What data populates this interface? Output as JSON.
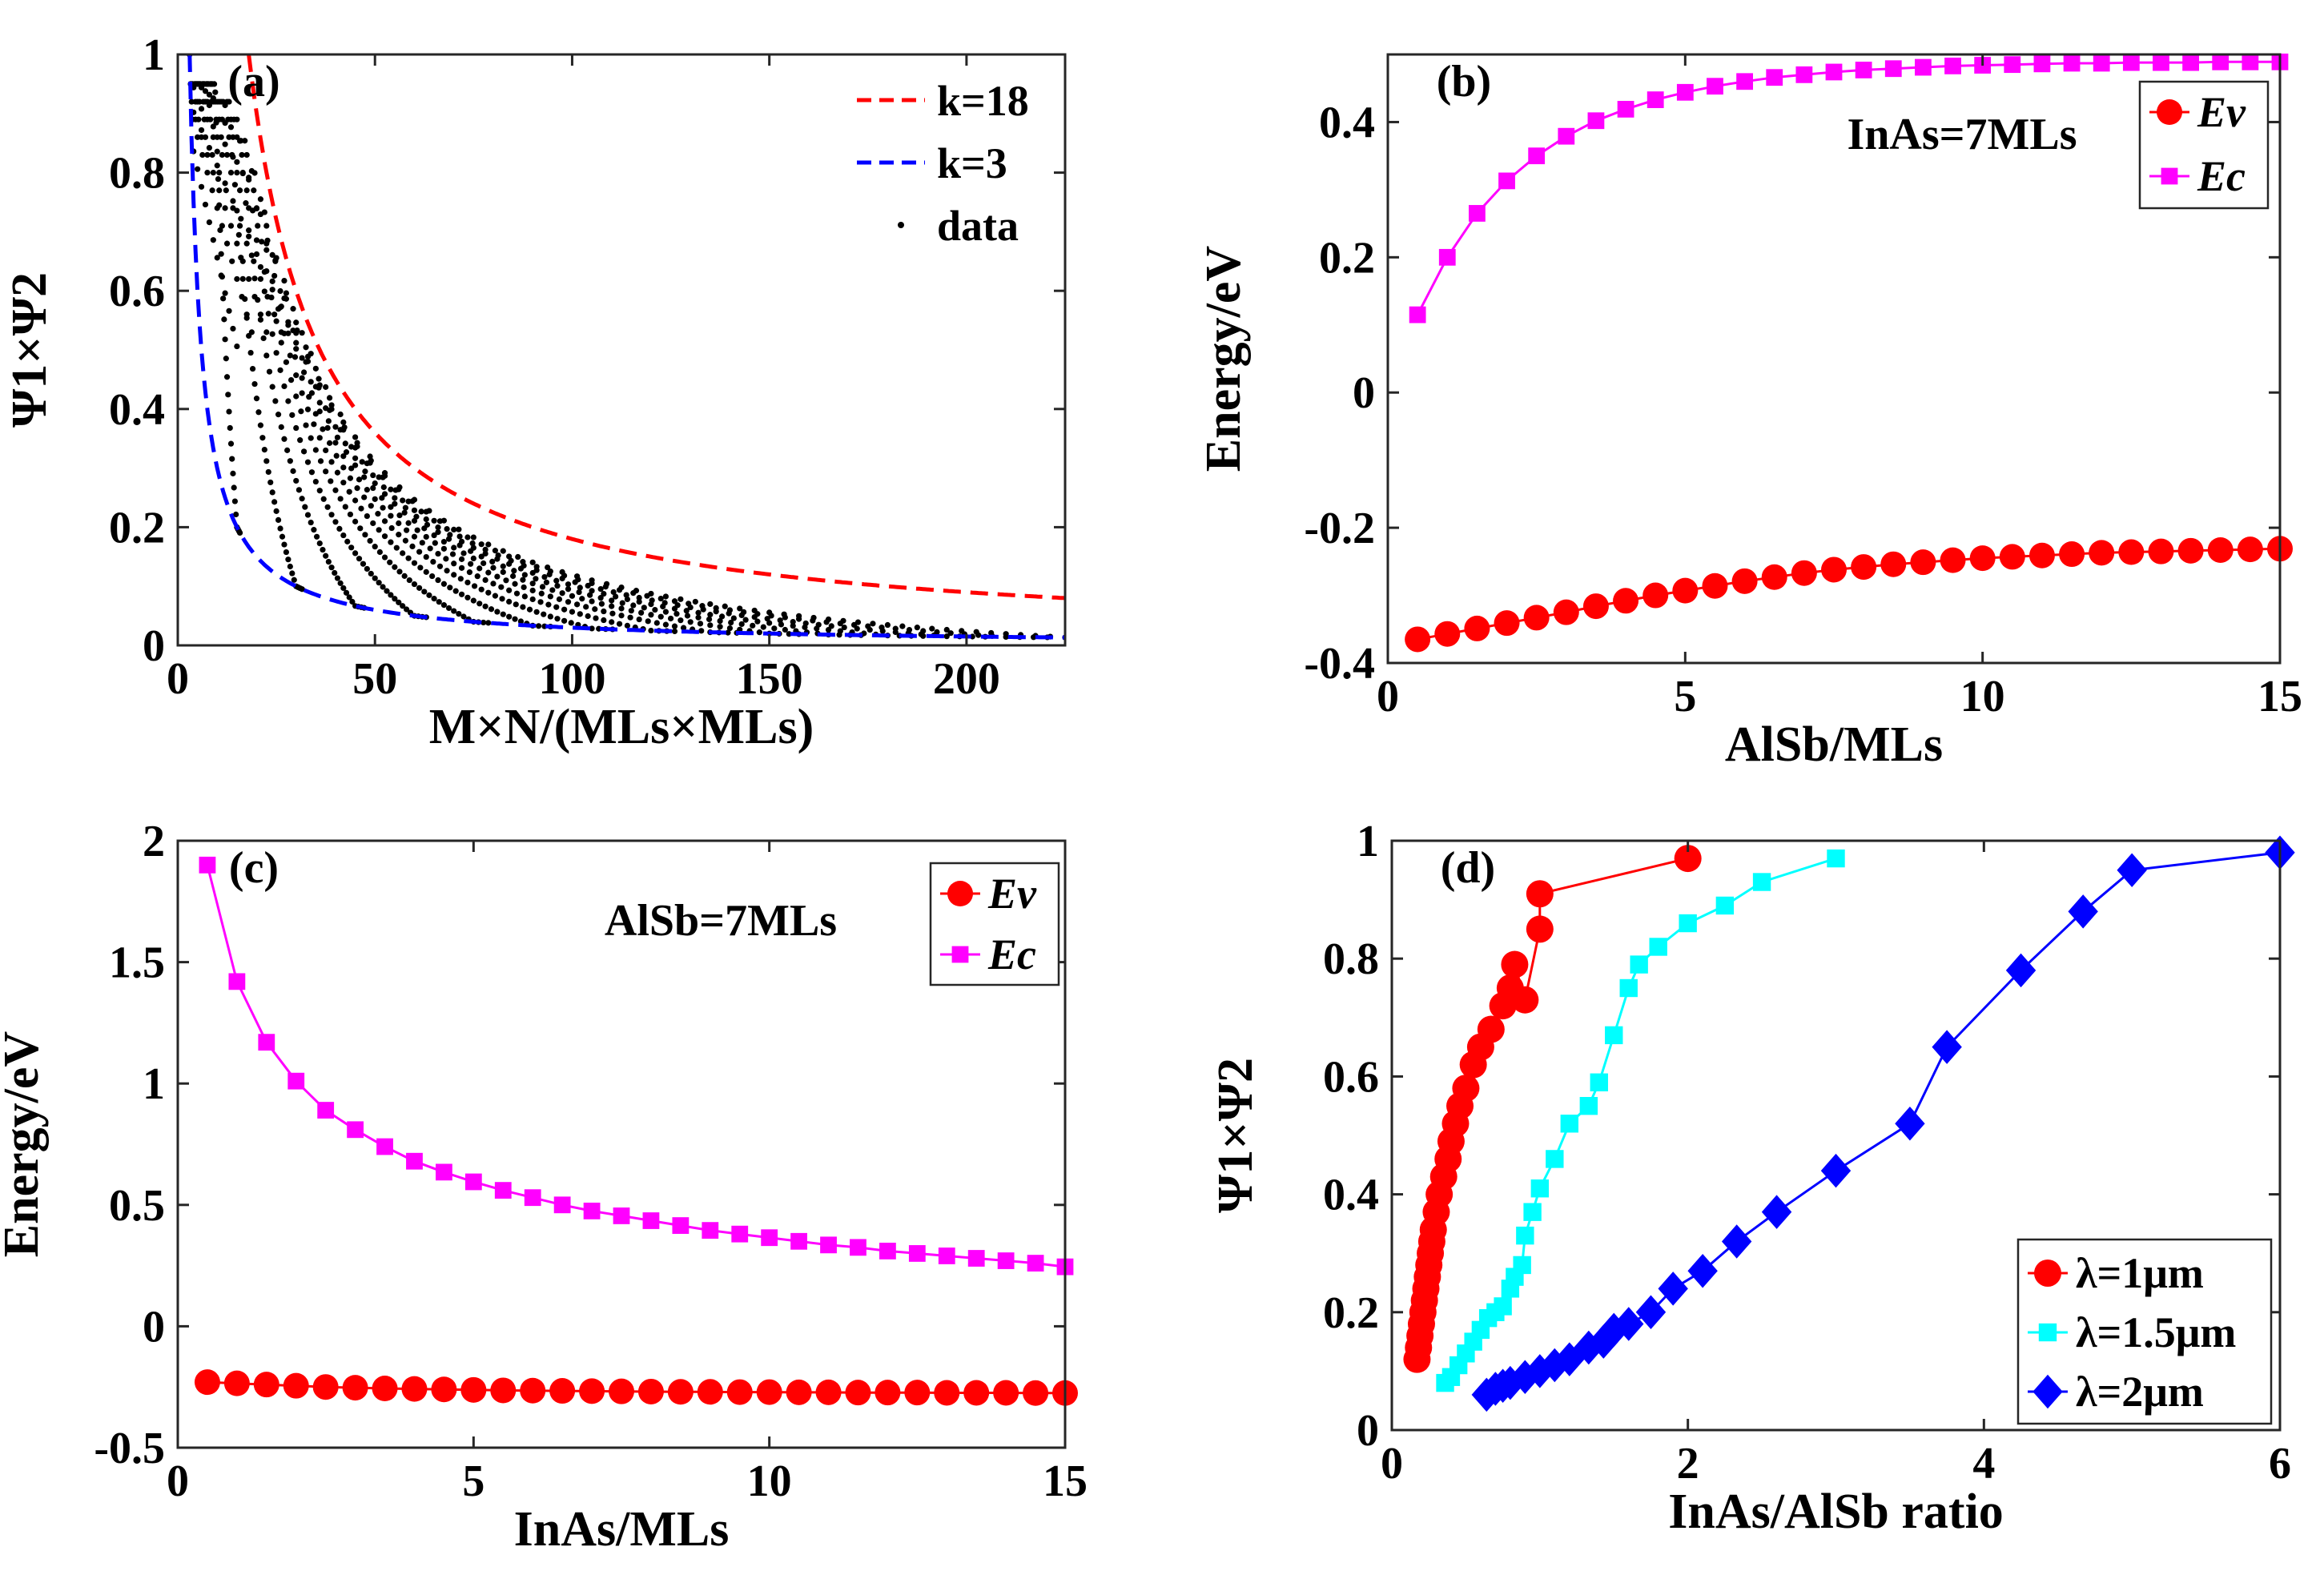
{
  "chart_data": [
    {
      "id": "a",
      "type": "scatter",
      "panel_label": "(a)",
      "xlabel": "M×N/(MLs×MLs)",
      "ylabel": "Ψ1×Ψ2",
      "xlim": [
        0,
        225
      ],
      "ylim": [
        0,
        1
      ],
      "xticks": [
        0,
        50,
        100,
        150,
        200
      ],
      "yticks": [
        0,
        0.2,
        0.4,
        0.6,
        0.8,
        1
      ],
      "ytick_labels": [
        "0",
        "0.2",
        "0.4",
        "0.6",
        "0.8",
        "1"
      ],
      "legend": [
        "k=18",
        "k=3",
        "data"
      ],
      "series": [
        {
          "name": "k=18",
          "kind": "dashed-curve",
          "color": "#ff0000",
          "formula": "y = 18/x",
          "x_range": [
            18,
            225
          ]
        },
        {
          "name": "k=3",
          "kind": "dashed-curve",
          "color": "#0000ff",
          "formula": "y = 3/x",
          "x_range": [
            3,
            225
          ]
        },
        {
          "name": "data",
          "kind": "dots",
          "color": "#000000",
          "description": "families of points for M=1..15 and N=1..15 lying between y=3/x and y=18/x"
        }
      ]
    },
    {
      "id": "b",
      "type": "line",
      "panel_label": "(b)",
      "annotation": "InAs=7MLs",
      "xlabel": "AlSb/MLs",
      "ylabel": "Energy/eV",
      "xlim": [
        0,
        15
      ],
      "ylim": [
        -0.4,
        0.5
      ],
      "xticks": [
        0,
        5,
        10,
        15
      ],
      "yticks": [
        -0.4,
        -0.2,
        0,
        0.2,
        0.4
      ],
      "ytick_labels": [
        "-0.4",
        "-0.2",
        "0",
        "0.2",
        "0.4"
      ],
      "x": [
        0.5,
        1,
        1.5,
        2,
        2.5,
        3,
        3.5,
        4,
        4.5,
        5,
        5.5,
        6,
        6.5,
        7,
        7.5,
        8,
        8.5,
        9,
        9.5,
        10,
        10.5,
        11,
        11.5,
        12,
        12.5,
        13,
        13.5,
        14,
        14.5,
        15
      ],
      "series": [
        {
          "name": "Ev",
          "marker": "circle",
          "color": "#ff0000",
          "values": [
            -0.365,
            -0.357,
            -0.349,
            -0.341,
            -0.333,
            -0.325,
            -0.316,
            -0.308,
            -0.3,
            -0.293,
            -0.286,
            -0.279,
            -0.273,
            -0.267,
            -0.262,
            -0.258,
            -0.254,
            -0.251,
            -0.248,
            -0.245,
            -0.243,
            -0.241,
            -0.239,
            -0.237,
            -0.236,
            -0.235,
            -0.234,
            -0.233,
            -0.232,
            -0.231
          ]
        },
        {
          "name": "Ec",
          "marker": "square",
          "color": "#ff00ff",
          "values": [
            0.115,
            0.2,
            0.265,
            0.313,
            0.35,
            0.379,
            0.402,
            0.419,
            0.433,
            0.444,
            0.453,
            0.46,
            0.466,
            0.47,
            0.474,
            0.477,
            0.479,
            0.481,
            0.483,
            0.484,
            0.485,
            0.486,
            0.487,
            0.487,
            0.488,
            0.488,
            0.488,
            0.489,
            0.489,
            0.489
          ]
        }
      ],
      "legend": [
        "Ev",
        "Ec"
      ]
    },
    {
      "id": "c",
      "type": "line",
      "panel_label": "(c)",
      "annotation": "AlSb=7MLs",
      "xlabel": "InAs/MLs",
      "ylabel": "Energy/eV",
      "xlim": [
        0,
        15
      ],
      "ylim": [
        -0.5,
        2
      ],
      "xticks": [
        0,
        5,
        10,
        15
      ],
      "yticks": [
        -0.5,
        0,
        0.5,
        1,
        1.5,
        2
      ],
      "ytick_labels": [
        "-0.5",
        "0",
        "0.5",
        "1",
        "1.5",
        "2"
      ],
      "x": [
        0.5,
        1,
        1.5,
        2,
        2.5,
        3,
        3.5,
        4,
        4.5,
        5,
        5.5,
        6,
        6.5,
        7,
        7.5,
        8,
        8.5,
        9,
        9.5,
        10,
        10.5,
        11,
        11.5,
        12,
        12.5,
        13,
        13.5,
        14,
        14.5,
        15
      ],
      "series": [
        {
          "name": "Ev",
          "marker": "circle",
          "color": "#ff0000",
          "values": [
            -0.23,
            -0.235,
            -0.24,
            -0.245,
            -0.25,
            -0.253,
            -0.256,
            -0.258,
            -0.26,
            -0.262,
            -0.264,
            -0.265,
            -0.266,
            -0.267,
            -0.268,
            -0.269,
            -0.27,
            -0.27,
            -0.271,
            -0.271,
            -0.272,
            -0.272,
            -0.273,
            -0.273,
            -0.273,
            -0.274,
            -0.274,
            -0.274,
            -0.275,
            -0.275
          ]
        },
        {
          "name": "Ec",
          "marker": "square",
          "color": "#ff00ff",
          "values": [
            1.9,
            1.42,
            1.17,
            1.01,
            0.89,
            0.81,
            0.74,
            0.68,
            0.635,
            0.595,
            0.56,
            0.53,
            0.5,
            0.475,
            0.455,
            0.435,
            0.415,
            0.395,
            0.38,
            0.365,
            0.35,
            0.335,
            0.325,
            0.31,
            0.3,
            0.29,
            0.28,
            0.27,
            0.26,
            0.245
          ]
        }
      ],
      "legend": [
        "Ev",
        "Ec"
      ]
    },
    {
      "id": "d",
      "type": "line",
      "panel_label": "(d)",
      "xlabel": "InAs/AlSb ratio",
      "ylabel": "Ψ1×Ψ2",
      "xlim": [
        0,
        6
      ],
      "ylim": [
        0,
        1
      ],
      "xticks": [
        0,
        2,
        4,
        6
      ],
      "yticks": [
        0,
        0.2,
        0.4,
        0.6,
        0.8,
        1
      ],
      "ytick_labels": [
        "0",
        "0.2",
        "0.4",
        "0.6",
        "0.8",
        "1"
      ],
      "series": [
        {
          "name": "λ=1μm",
          "marker": "circle",
          "color": "#ff0000",
          "x": [
            0.17,
            0.18,
            0.19,
            0.2,
            0.21,
            0.22,
            0.23,
            0.24,
            0.25,
            0.26,
            0.27,
            0.28,
            0.3,
            0.32,
            0.35,
            0.38,
            0.4,
            0.43,
            0.46,
            0.5,
            0.55,
            0.6,
            0.67,
            0.75,
            0.8,
            0.83,
            0.9,
            1.0,
            1.0,
            2.0
          ],
          "y": [
            0.12,
            0.14,
            0.16,
            0.18,
            0.2,
            0.22,
            0.24,
            0.26,
            0.28,
            0.3,
            0.32,
            0.34,
            0.37,
            0.4,
            0.43,
            0.46,
            0.49,
            0.52,
            0.55,
            0.58,
            0.62,
            0.65,
            0.68,
            0.72,
            0.75,
            0.79,
            0.73,
            0.85,
            0.91,
            0.97
          ]
        },
        {
          "name": "λ=1.5μm",
          "marker": "square",
          "color": "#00ffff",
          "x": [
            0.36,
            0.4,
            0.45,
            0.5,
            0.55,
            0.6,
            0.65,
            0.7,
            0.75,
            0.8,
            0.83,
            0.88,
            0.9,
            0.95,
            1.0,
            1.1,
            1.2,
            1.33,
            1.4,
            1.5,
            1.6,
            1.67,
            1.8,
            2.0,
            2.25,
            2.5,
            3.0
          ],
          "y": [
            0.08,
            0.09,
            0.11,
            0.13,
            0.15,
            0.17,
            0.19,
            0.2,
            0.21,
            0.24,
            0.26,
            0.28,
            0.33,
            0.37,
            0.41,
            0.46,
            0.52,
            0.55,
            0.59,
            0.67,
            0.75,
            0.79,
            0.82,
            0.86,
            0.89,
            0.93,
            0.97
          ]
        },
        {
          "name": "λ=2μm",
          "marker": "diamond",
          "color": "#0000ff",
          "x": [
            0.64,
            0.7,
            0.75,
            0.8,
            0.9,
            1.0,
            1.1,
            1.2,
            1.33,
            1.43,
            1.5,
            1.6,
            1.75,
            1.9,
            2.1,
            2.33,
            2.6,
            3.0,
            3.5,
            3.75,
            4.25,
            4.67,
            5.0,
            6.0
          ],
          "y": [
            0.06,
            0.07,
            0.075,
            0.08,
            0.09,
            0.1,
            0.11,
            0.12,
            0.14,
            0.15,
            0.17,
            0.18,
            0.2,
            0.24,
            0.27,
            0.32,
            0.37,
            0.44,
            0.52,
            0.65,
            0.78,
            0.88,
            0.95,
            0.98
          ]
        }
      ],
      "legend": [
        "λ=1μm",
        "λ=1.5μm",
        "λ=2μm"
      ]
    }
  ]
}
